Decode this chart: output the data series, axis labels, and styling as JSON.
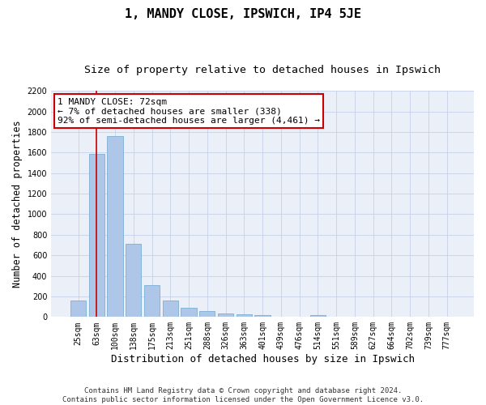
{
  "title": "1, MANDY CLOSE, IPSWICH, IP4 5JE",
  "subtitle": "Size of property relative to detached houses in Ipswich",
  "xlabel": "Distribution of detached houses by size in Ipswich",
  "ylabel": "Number of detached properties",
  "footer_line1": "Contains HM Land Registry data © Crown copyright and database right 2024.",
  "footer_line2": "Contains public sector information licensed under the Open Government Licence v3.0.",
  "bar_labels": [
    "25sqm",
    "63sqm",
    "100sqm",
    "138sqm",
    "175sqm",
    "213sqm",
    "251sqm",
    "288sqm",
    "326sqm",
    "363sqm",
    "401sqm",
    "439sqm",
    "476sqm",
    "514sqm",
    "551sqm",
    "589sqm",
    "627sqm",
    "664sqm",
    "702sqm",
    "739sqm",
    "777sqm"
  ],
  "bar_values": [
    160,
    1590,
    1760,
    710,
    310,
    160,
    90,
    55,
    35,
    30,
    20,
    0,
    0,
    20,
    0,
    0,
    0,
    0,
    0,
    0,
    0
  ],
  "bar_color": "#aec6e8",
  "bar_edge_color": "#7bafd4",
  "background_color": "#eaeff8",
  "annotation_line1": "1 MANDY CLOSE: 72sqm",
  "annotation_line2": "← 7% of detached houses are smaller (338)",
  "annotation_line3": "92% of semi-detached houses are larger (4,461) →",
  "annotation_box_color": "#ffffff",
  "annotation_box_edge": "#cc0000",
  "vline_x": 1.0,
  "vline_color": "#cc0000",
  "ylim": [
    0,
    2200
  ],
  "yticks": [
    0,
    200,
    400,
    600,
    800,
    1000,
    1200,
    1400,
    1600,
    1800,
    2000,
    2200
  ],
  "grid_color": "#c8d0e8",
  "title_fontsize": 11,
  "subtitle_fontsize": 9.5,
  "xlabel_fontsize": 9,
  "ylabel_fontsize": 8.5,
  "tick_fontsize": 7,
  "annotation_fontsize": 8,
  "footer_fontsize": 6.5
}
